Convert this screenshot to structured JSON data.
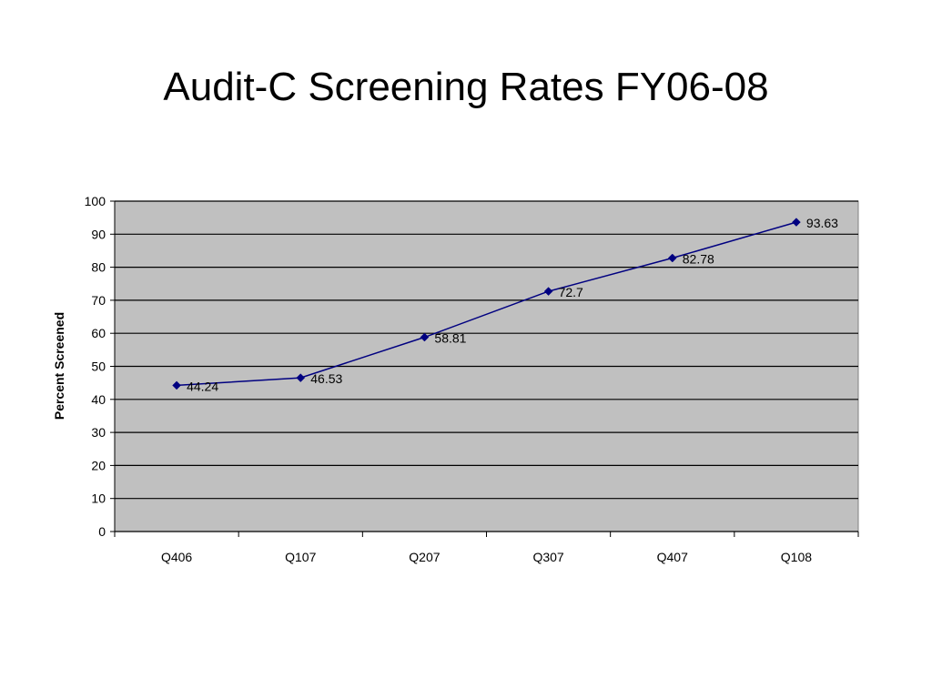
{
  "slide": {
    "title": "Audit-C Screening Rates FY06-08"
  },
  "chart_data": {
    "type": "line",
    "title": "Audit-C Screening Rates FY06-08",
    "xlabel": "",
    "ylabel": "Percent Screened",
    "categories": [
      "Q406",
      "Q107",
      "Q207",
      "Q307",
      "Q407",
      "Q108"
    ],
    "series": [
      {
        "values": [
          44.24,
          46.53,
          58.81,
          72.7,
          82.78,
          93.63
        ],
        "labels": [
          "44.24",
          "46.53",
          "58.81",
          "72.7",
          "82.78",
          "93.63"
        ],
        "color": "#000080",
        "marker": "diamond"
      }
    ],
    "ylim": [
      0,
      100
    ],
    "yticks": [
      0,
      10,
      20,
      30,
      40,
      50,
      60,
      70,
      80,
      90,
      100
    ],
    "grid": true,
    "legend": "none",
    "plot_background": "#c0c0c0",
    "gridline_color": "#000000"
  }
}
